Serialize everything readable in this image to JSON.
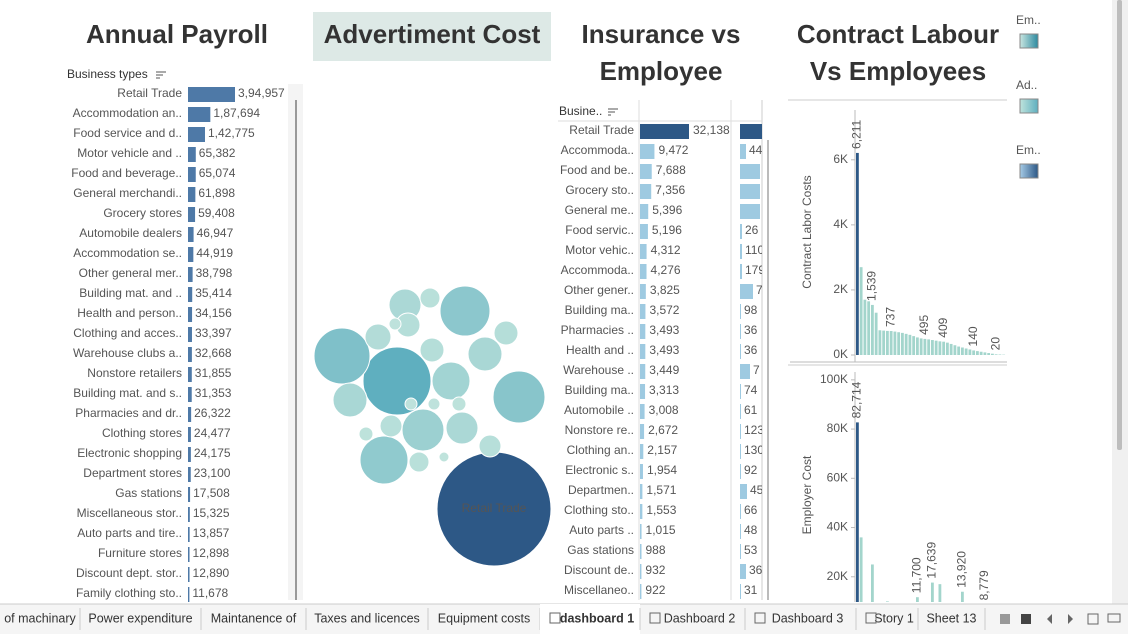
{
  "panels": {
    "payroll": {
      "title": "Annual Payroll",
      "header": "Business types",
      "categories": [
        "Retail Trade",
        "Accommodation an..",
        "Food service and d..",
        "Motor vehicle and ..",
        "Food and beverage..",
        "General merchandi..",
        "Grocery stores",
        "Automobile dealers",
        "Accommodation se..",
        "Other general mer..",
        "Building mat. and ..",
        "Health and person..",
        "Clothing and acces..",
        "Warehouse clubs a..",
        "Nonstore retailers",
        "Building mat. and s..",
        "Pharmacies and dr..",
        "Clothing stores",
        "Electronic shopping",
        "Department stores",
        "Gas stations",
        "Miscellaneous stor..",
        "Auto parts and tire..",
        "Furniture stores",
        "Discount dept. stor..",
        "Family clothing sto.."
      ],
      "values": [
        394957,
        187694,
        142775,
        65382,
        65074,
        61898,
        59408,
        46947,
        44919,
        38798,
        35414,
        34156,
        33397,
        32668,
        31855,
        31353,
        26322,
        24477,
        24175,
        23100,
        17508,
        15325,
        13857,
        12898,
        12890,
        11678
      ],
      "value_labels": [
        "3,94,957",
        "1,87,694",
        "1,42,775",
        "65,382",
        "65,074",
        "61,898",
        "59,408",
        "46,947",
        "44,919",
        "38,798",
        "35,414",
        "34,156",
        "33,397",
        "32,668",
        "31,855",
        "31,353",
        "26,322",
        "24,477",
        "24,175",
        "23,100",
        "17,508",
        "15,325",
        "13,857",
        "12,898",
        "12,890",
        "11,678"
      ],
      "color": "#4e79a7"
    },
    "advertisement": {
      "title": "Advertiment Cost",
      "bubble_label": "Retail Trade",
      "values": [
        3249,
        1156,
        784,
        625,
        676,
        576,
        441,
        289,
        361,
        256,
        289,
        256,
        100,
        169,
        144,
        144,
        121,
        100,
        144,
        121,
        49,
        36,
        36,
        36,
        25,
        49
      ]
    },
    "insurance": {
      "title_lines": [
        "Insurance vs",
        "Employee"
      ],
      "header": "Busine..",
      "categories": [
        "Retail Trade",
        "Accommoda..",
        "Food and be..",
        "Grocery sto..",
        "General me..",
        "Food servic..",
        "Motor vehic..",
        "Accommoda..",
        "Other gener..",
        "Building ma..",
        "Pharmacies ..",
        "Health and ..",
        "Warehouse ..",
        "Building ma..",
        "Automobile ..",
        "Nonstore re..",
        "Clothing an..",
        "Electronic s..",
        "Departmen..",
        "Clothing sto..",
        "Auto parts ..",
        "Gas stations",
        "Discount de..",
        "Miscellaneo.."
      ],
      "values": [
        32138,
        9472,
        7688,
        7356,
        5396,
        5196,
        4312,
        4276,
        3825,
        3572,
        3493,
        3493,
        3449,
        3313,
        3008,
        2672,
        2157,
        1954,
        1571,
        1553,
        1015,
        988,
        932,
        922
      ],
      "value_labels": [
        "32,138",
        "9,472",
        "7,688",
        "7,356",
        "5,396",
        "5,196",
        "4,312",
        "4,276",
        "3,825",
        "3,572",
        "3,493",
        "3,493",
        "3,449",
        "3,313",
        "3,008",
        "2,672",
        "2,157",
        "1,954",
        "1,571",
        "1,553",
        "1,015",
        "988",
        "932",
        "922"
      ],
      "second_column_labels": [
        null,
        "44",
        null,
        null,
        null,
        "26",
        "110",
        "179",
        "7",
        "98",
        "36",
        "36",
        "7",
        "74",
        "61",
        "123",
        "130",
        "92",
        "45",
        "66",
        "48",
        "53",
        "36",
        "31"
      ]
    },
    "contract": {
      "title_lines": [
        "Contract Labour",
        "Vs Employees"
      ],
      "upper": {
        "axis_label": "Contract Labor Costs",
        "ylim": [
          0,
          7500
        ],
        "yticks": [
          {
            "value": 0,
            "label": "0K"
          },
          {
            "value": 2000,
            "label": "2K"
          },
          {
            "value": 4000,
            "label": "4K"
          },
          {
            "value": 6000,
            "label": "6K"
          }
        ],
        "values": [
          6211,
          2700,
          1700,
          1650,
          1539,
          1300,
          760,
          750,
          740,
          737,
          720,
          700,
          680,
          650,
          620,
          580,
          540,
          510,
          495,
          480,
          460,
          440,
          420,
          409,
          380,
          340,
          300,
          260,
          230,
          200,
          170,
          140,
          120,
          100,
          80,
          60,
          40,
          20,
          15,
          10
        ],
        "value_labels": [
          "6,211",
          null,
          null,
          null,
          "1,539",
          null,
          null,
          null,
          null,
          "737",
          null,
          null,
          null,
          null,
          null,
          null,
          null,
          null,
          "495",
          null,
          null,
          null,
          null,
          "409",
          null,
          null,
          null,
          null,
          null,
          null,
          null,
          "140",
          null,
          null,
          null,
          null,
          null,
          "20",
          null,
          null
        ]
      },
      "lower": {
        "axis_label": "Employer Cost",
        "ylim": [
          0,
          104000
        ],
        "yticks": [
          {
            "value": 20000,
            "label": "20K"
          },
          {
            "value": 40000,
            "label": "40K"
          },
          {
            "value": 60000,
            "label": "60K"
          },
          {
            "value": 80000,
            "label": "80K"
          },
          {
            "value": 100000,
            "label": "100K"
          }
        ],
        "values": [
          82714,
          36000,
          4000,
          3000,
          25000,
          3000,
          2000,
          2000,
          10000,
          2000,
          2000,
          2000,
          2000,
          2000,
          2000,
          2000,
          11700,
          2000,
          2000,
          4000,
          17639,
          5000,
          17000,
          2000,
          2000,
          2000,
          2000,
          5000,
          13920,
          2000,
          2000,
          2000,
          2000,
          2000,
          8779,
          2000,
          2000,
          2000,
          2000,
          2000
        ],
        "value_labels": [
          "82,714",
          null,
          null,
          null,
          null,
          null,
          null,
          null,
          null,
          null,
          null,
          null,
          null,
          null,
          null,
          null,
          "11,700",
          null,
          null,
          null,
          "17,639",
          null,
          null,
          null,
          null,
          null,
          null,
          null,
          "13,920",
          null,
          null,
          null,
          null,
          null,
          "8,779",
          null,
          null,
          null,
          null,
          null
        ]
      }
    }
  },
  "legends": [
    "Em..",
    "Ad..",
    "Em.."
  ],
  "tabs": [
    "of machinary",
    "Power expenditure",
    "Maintanence of",
    "Taxes and licences",
    "Equipment costs",
    "dashboard 1",
    "Dashboard 2",
    "Dashboard 3",
    "Story 1",
    "Sheet 13"
  ],
  "active_tab": 5
}
